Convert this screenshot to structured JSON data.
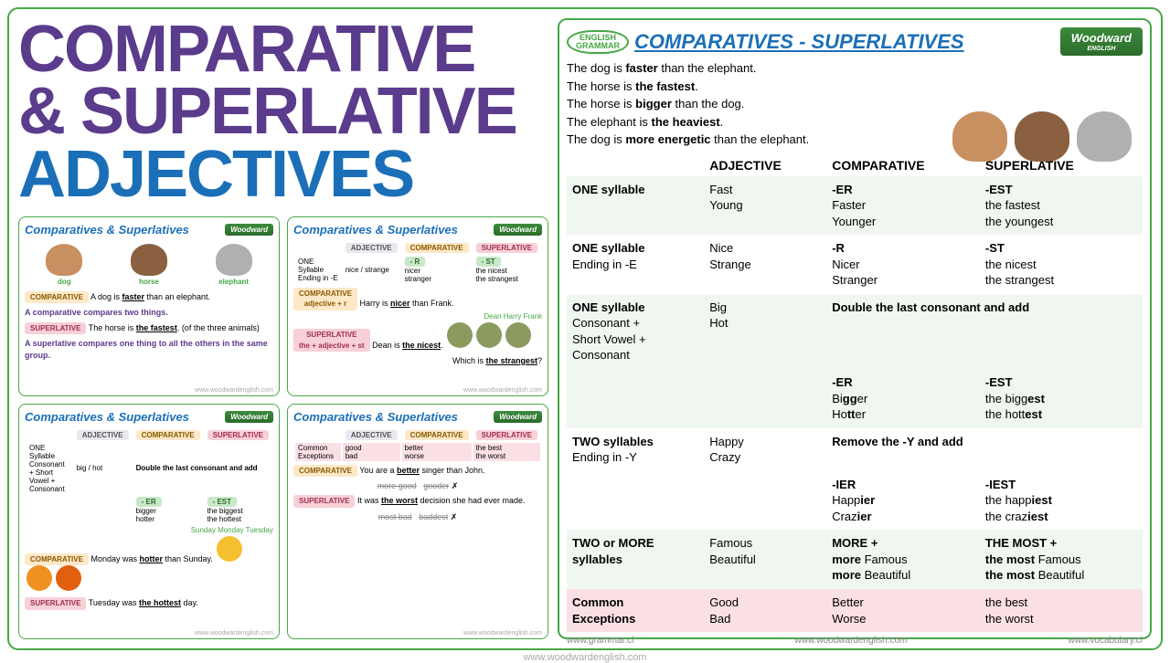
{
  "title_line1": "COMPARATIVE",
  "title_line2": "& SUPERLATIVE",
  "title_line3": "ADJECTIVES",
  "logo_text": "Woodward",
  "logo_sub": "ENGLISH",
  "card_title": "Comparatives & Superlatives",
  "badge_line1": "ENGLISH",
  "badge_line2": "GRAMMAR",
  "main_url": "www.woodwardenglish.com",
  "right": {
    "title": "COMPARATIVES - SUPERLATIVES",
    "ex": [
      {
        "pre": "The dog is ",
        "b": "faster",
        "post": " than the elephant."
      },
      {
        "pre": "The horse is ",
        "b": "the fastest",
        "post": "."
      },
      {
        "pre": "The horse is ",
        "b": "bigger",
        "post": " than the dog."
      },
      {
        "pre": "The elephant is ",
        "b": "the heaviest",
        "post": "."
      },
      {
        "pre": "The dog is ",
        "b": "more energetic",
        "post": " than the elephant."
      }
    ],
    "headers": [
      "",
      "ADJECTIVE",
      "COMPARATIVE",
      "SUPERLATIVE"
    ],
    "rows": [
      {
        "alt": true,
        "label": "ONE syllable",
        "adj": "Fast\nYoung",
        "comp_hdr": "-ER",
        "comp": "Faster\nYounger",
        "sup_hdr": "-EST",
        "sup": "the fastest\nthe youngest"
      },
      {
        "alt": false,
        "label": "ONE syllable",
        "sub": "Ending in -E",
        "adj": "Nice\nStrange",
        "comp_hdr": "-R",
        "comp": "Nicer\nStranger",
        "sup_hdr": "-ST",
        "sup": "the nicest\nthe strangest"
      },
      {
        "alt": true,
        "label": "ONE syllable",
        "sub": "Consonant +\nShort Vowel +\nConsonant",
        "adj": "Big\nHot",
        "span_hdr": "Double the last consonant and add",
        "comp_hdr": "-ER",
        "comp": "Bigger\nHotter",
        "sup_hdr": "-EST",
        "sup": "the biggest\nthe hottest"
      },
      {
        "alt": false,
        "label": "TWO syllables",
        "sub": "Ending in -Y",
        "adj": "Happy\nCrazy",
        "span_hdr": "Remove the -Y and add",
        "comp_hdr": "-IER",
        "comp": "Happier\nCrazier",
        "sup_hdr": "-IEST",
        "sup": "the happiest\nthe craziest"
      },
      {
        "alt": true,
        "label": "TWO or MORE\nsyllables",
        "adj": "Famous\nBeautiful",
        "comp_hdr": "MORE +",
        "comp": "more Famous\nmore Beautiful",
        "sup_hdr": "THE MOST +",
        "sup": "the most Famous\nthe most Beautiful"
      },
      {
        "pink": true,
        "label": "Common\nExceptions",
        "adj": "Good\nBad",
        "comp": "Better\nWorse",
        "sup": "the best\nthe worst"
      }
    ],
    "urls": [
      "www.grammar.cl",
      "www.woodwardenglish.com",
      "www.vocabulary.cl"
    ]
  },
  "card1": {
    "animals": [
      "dog",
      "horse",
      "elephant"
    ],
    "l1_tag": "COMPARATIVE",
    "l1": "A dog is <b><u>faster</u></b> than an elephant.",
    "l1b": "A comparative compares two things.",
    "l2_tag": "SUPERLATIVE",
    "l2": "The horse is <b><u>the fastest</u></b>. (of the three animals)",
    "l2b": "A superlative compares one thing to all the others in the same group."
  },
  "card2": {
    "hdr": [
      "ADJECTIVE",
      "COMPARATIVE",
      "SUPERLATIVE"
    ],
    "r1": [
      "ONE Syllable Ending in -E",
      "nice / strange",
      "-R nicer / stranger",
      "-ST the nicest / the strangest"
    ],
    "ex1": "Harry is <b><u>nicer</u></b> than Frank.",
    "ex2": "Dean is <b><u>the nicest</u></b>.",
    "ex3": "Which is <b><u>the strangest</u></b>?",
    "names": [
      "Dean",
      "Harry",
      "Frank"
    ]
  },
  "card3": {
    "hdr": [
      "ADJECTIVE",
      "COMPARATIVE",
      "SUPERLATIVE"
    ],
    "r1": [
      "ONE Syllable Consonant + Short Vowel + Consonant",
      "big / hot"
    ],
    "span": "Double the last consonant and add",
    "comp": "-ER bigger / hotter",
    "sup": "-EST the biggest / the hottest",
    "ex1": "Monday was <b><u>hotter</u></b> than Sunday.",
    "ex2": "Tuesday was <b><u>the hottest</u></b> day.",
    "names": [
      "Sunday",
      "Monday",
      "Tuesday"
    ]
  },
  "card4": {
    "hdr": [
      "ADJECTIVE",
      "COMPARATIVE",
      "SUPERLATIVE"
    ],
    "r1": [
      "Common Exceptions",
      "good / bad",
      "better / worse",
      "the best / the worst"
    ],
    "ex1": "You are a <b><u>better</u></b> singer than John.",
    "cross1": "more good",
    "cross2": "gooder",
    "ex2": "It was <b><u>the worst</u></b> decision she had ever made.",
    "cross3": "most bad",
    "cross4": "baddest"
  }
}
